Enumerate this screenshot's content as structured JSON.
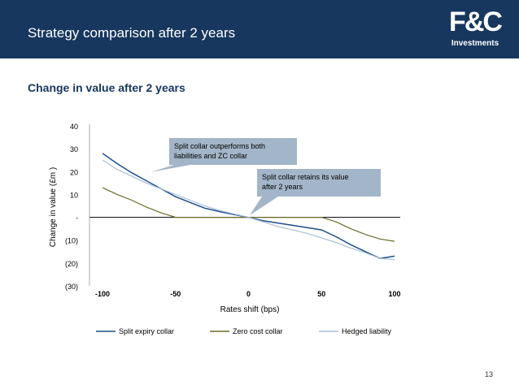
{
  "header": {
    "title": "Strategy comparison after 2 years",
    "logo_text": "F&C",
    "logo_sub": "Investments"
  },
  "subtitle": "Change in value after 2 years",
  "page_number": "13",
  "colors": {
    "header_bg": "#17375e",
    "split": "#1f4e8c",
    "zero": "#6b6b2a",
    "hedged": "#a9bdd6",
    "callout_bg": "#a3b5c8"
  },
  "chart_data": {
    "type": "line",
    "title": "",
    "xlabel": "Rates shift (bps)",
    "ylabel": "Change in value  (£m )",
    "xlim": [
      -100,
      100
    ],
    "ylim": [
      -30,
      40
    ],
    "x_ticks": [
      -100,
      -50,
      0,
      50,
      100
    ],
    "x_tick_labels": [
      "-100",
      "-50",
      "0",
      "50",
      "100"
    ],
    "y_ticks": [
      40,
      30,
      20,
      10,
      0,
      -10,
      -20,
      -30
    ],
    "y_tick_labels": [
      "40",
      "30",
      "20",
      "10",
      "-",
      "(10)",
      "(20)",
      "(30)"
    ],
    "x": [
      -100,
      -90,
      -80,
      -70,
      -60,
      -50,
      -40,
      -30,
      -20,
      -10,
      0,
      10,
      20,
      30,
      40,
      50,
      60,
      70,
      80,
      90,
      100
    ],
    "series": [
      {
        "name": "Split expiry collar",
        "values": [
          28,
          23.5,
          19.5,
          16,
          12.5,
          9,
          6.5,
          4,
          2.5,
          1.2,
          0,
          -1.5,
          -2.5,
          -3.5,
          -4.5,
          -5.5,
          -8.5,
          -12,
          -15,
          -18,
          -17
        ]
      },
      {
        "name": "Zero cost collar",
        "values": [
          13,
          10,
          7.5,
          4.5,
          2,
          0,
          0,
          0,
          0,
          0,
          0,
          0,
          0,
          0,
          0,
          0,
          -2,
          -5,
          -7.5,
          -9.5,
          -10.5
        ]
      },
      {
        "name": "Hedged liability",
        "values": [
          25,
          21,
          18,
          15,
          12.5,
          10,
          7.5,
          5,
          3,
          1.5,
          0,
          -2,
          -4,
          -5.5,
          -7,
          -9,
          -11,
          -13.5,
          -15.5,
          -18,
          -18.5
        ]
      }
    ],
    "legend": [
      "Split expiry collar",
      "Zero cost collar",
      "Hedged liability"
    ],
    "legend_position": "bottom",
    "annotations": [
      {
        "lines": [
          "Split collar outperforms both",
          "liabilities and ZC collar"
        ],
        "points_to_x": -70
      },
      {
        "lines": [
          "Split collar retains its value",
          "after 2 years"
        ],
        "points_to_x": 0
      }
    ]
  }
}
